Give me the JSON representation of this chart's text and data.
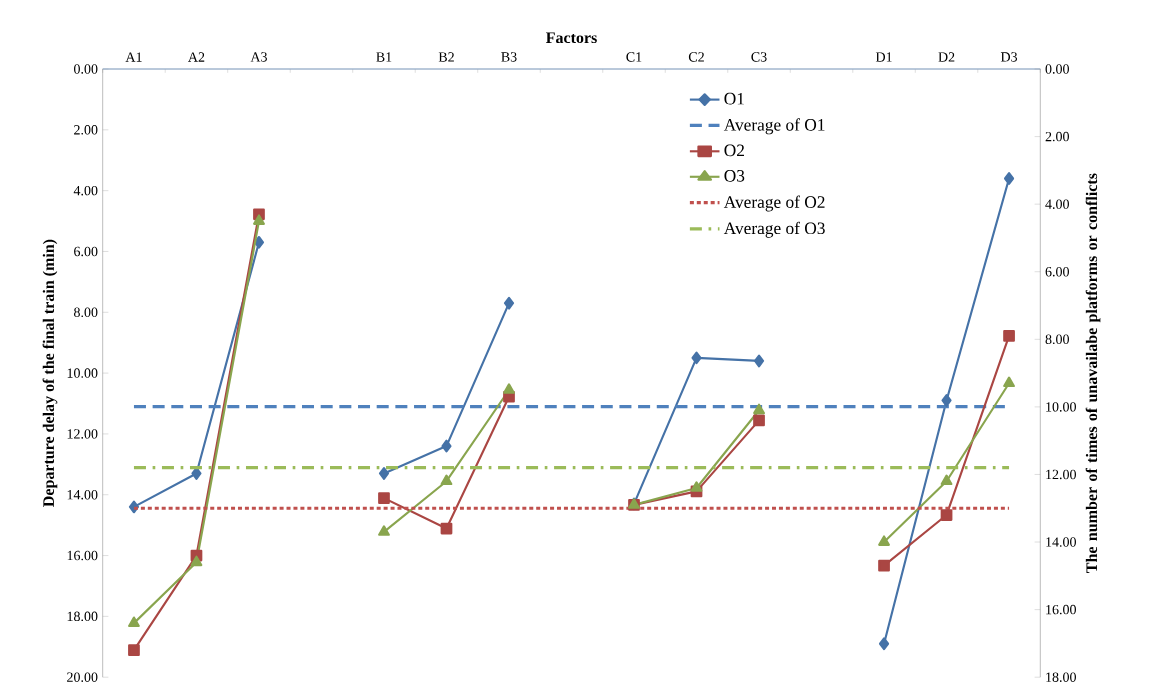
{
  "chart_data": {
    "type": "line",
    "xlabel": "Factors",
    "ylabel": "Departure delay of the final train (min)",
    "y2label": "The number of times of unavailabe platforms or conflicts",
    "categories": [
      "A1",
      "A2",
      "A3",
      null,
      "B1",
      "B2",
      "B3",
      null,
      "C1",
      "C2",
      "C3",
      null,
      "D1",
      "D2",
      "D3"
    ],
    "series": [
      {
        "name": "O1",
        "color": "#4572a7",
        "marker": "diamond",
        "values": [
          14.4,
          13.3,
          5.7,
          null,
          13.3,
          12.4,
          7.7,
          null,
          14.3,
          9.5,
          9.6,
          null,
          18.9,
          10.9,
          3.6
        ]
      },
      {
        "name": "O2",
        "color": "#aa4643",
        "marker": "square",
        "axis": "y2",
        "values": [
          17.2,
          14.4,
          4.3,
          null,
          12.7,
          13.6,
          9.7,
          null,
          12.9,
          12.5,
          10.4,
          null,
          14.7,
          13.2,
          7.9
        ]
      },
      {
        "name": "O3",
        "color": "#89a54e",
        "marker": "triangle",
        "axis": "y2",
        "values": [
          16.4,
          14.6,
          4.5,
          null,
          13.7,
          12.2,
          9.5,
          null,
          12.9,
          12.4,
          10.1,
          null,
          14.0,
          12.2,
          9.3
        ]
      }
    ],
    "ref_lines": [
      {
        "axis": "y",
        "value": 11.1,
        "label": "Average of O1",
        "color": "#4f81bd",
        "line_style": "dashed"
      },
      {
        "axis": "y2",
        "value": 13.0,
        "label": "Average of O2",
        "color": "#c0504d",
        "line_style": "dotted"
      },
      {
        "axis": "y2",
        "value": 11.8,
        "label": "Average of O3",
        "color": "#9bbb59",
        "line_style": "dashdot"
      }
    ],
    "ylim": [
      20,
      0
    ],
    "yticks": [
      {
        "value": 0,
        "label": "0.00"
      },
      {
        "value": 2,
        "label": "2.00"
      },
      {
        "value": 4,
        "label": "4.00"
      },
      {
        "value": 6,
        "label": "6.00"
      },
      {
        "value": 8,
        "label": "8.00"
      },
      {
        "value": 10,
        "label": "10.00"
      },
      {
        "value": 12,
        "label": "12.00"
      },
      {
        "value": 14,
        "label": "14.00"
      },
      {
        "value": 16,
        "label": "16.00"
      },
      {
        "value": 18,
        "label": "18.00"
      },
      {
        "value": 20,
        "label": "20.00"
      }
    ],
    "y2lim": [
      18,
      0
    ],
    "y2ticks": [
      {
        "value": 0,
        "label": "0.00"
      },
      {
        "value": 2,
        "label": "2.00"
      },
      {
        "value": 4,
        "label": "4.00"
      },
      {
        "value": 6,
        "label": "6.00"
      },
      {
        "value": 8,
        "label": "8.00"
      },
      {
        "value": 10,
        "label": "10.00"
      },
      {
        "value": 12,
        "label": "12.00"
      },
      {
        "value": 14,
        "label": "14.00"
      },
      {
        "value": 16,
        "label": "16.00"
      },
      {
        "value": 18,
        "label": "18.00"
      }
    ],
    "legend": "top right"
  }
}
